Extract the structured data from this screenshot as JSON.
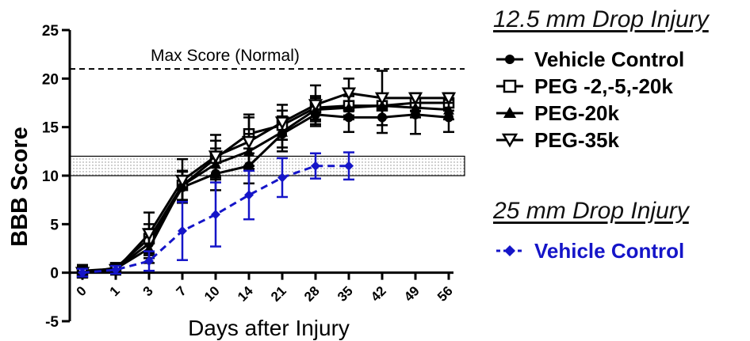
{
  "chart_data": {
    "type": "line",
    "ylabel": "BBB Score",
    "xlabel": "Days after Injury",
    "categories": [
      "0",
      "1",
      "3",
      "7",
      "10",
      "14",
      "21",
      "28",
      "35",
      "42",
      "49",
      "56"
    ],
    "ylim": [
      -5,
      25
    ],
    "yticks": [
      -5,
      0,
      5,
      10,
      15,
      20,
      25
    ],
    "ytick_labels": [
      "-5",
      "0",
      "5",
      "10",
      "15",
      "20",
      "25"
    ],
    "reference_line": {
      "y": 21,
      "label": "Max Score (Normal)"
    },
    "shaded_band": {
      "y_min": 10,
      "y_max": 12
    },
    "groups": [
      {
        "heading": "12.5 mm Drop Injury",
        "series": [
          {
            "name": "Vehicle Control",
            "marker": "circle",
            "color": "#000000",
            "dashed": false,
            "values": [
              0.2,
              0.4,
              3.0,
              8.8,
              10.2,
              11.0,
              14.3,
              16.3,
              16.0,
              16.0,
              16.3,
              16.0
            ],
            "errors": [
              0.6,
              0.5,
              1.5,
              1.6,
              1.7,
              1.8,
              1.8,
              1.2,
              1.5,
              1.6,
              2.0,
              1.5
            ]
          },
          {
            "name": "PEG -2,-5,-20k",
            "marker": "square",
            "color": "#000000",
            "dashed": false,
            "values": [
              0.0,
              0.5,
              3.5,
              9.0,
              11.8,
              14.3,
              15.2,
              17.0,
              17.2,
              17.2,
              17.5,
              17.5
            ],
            "errors": [
              0.5,
              0.5,
              1.5,
              1.5,
              1.8,
              2.0,
              1.5,
              1.2,
              1.0,
              1.2,
              0.8,
              0.8
            ]
          },
          {
            "name": "PEG-20k",
            "marker": "triangle-up",
            "color": "#000000",
            "dashed": false,
            "values": [
              0.1,
              0.4,
              2.5,
              9.0,
              11.2,
              12.5,
              14.5,
              16.8,
              17.0,
              17.2,
              17.0,
              16.8
            ],
            "errors": [
              0.6,
              0.5,
              1.5,
              1.5,
              1.6,
              1.8,
              1.6,
              1.2,
              1.2,
              1.2,
              1.0,
              1.0
            ]
          },
          {
            "name": "PEG-35k",
            "marker": "triangle-down",
            "color": "#000000",
            "dashed": false,
            "values": [
              0.0,
              0.3,
              4.0,
              9.5,
              12.0,
              13.5,
              15.5,
              17.3,
              18.5,
              18.0,
              18.0,
              18.0
            ],
            "errors": [
              0.5,
              0.5,
              2.2,
              2.2,
              2.2,
              2.5,
              1.8,
              2.0,
              1.5,
              2.8,
              0.5,
              0.5
            ]
          }
        ]
      },
      {
        "heading": "25 mm Drop Injury",
        "series": [
          {
            "name": "Vehicle Control",
            "marker": "diamond",
            "color": "#1515c8",
            "dashed": true,
            "values": [
              0.0,
              0.3,
              1.2,
              4.3,
              6.0,
              8.0,
              9.8,
              11.0,
              11.0
            ],
            "errors": [
              0.4,
              0.4,
              1.0,
              3.0,
              3.3,
              2.5,
              2.0,
              1.3,
              1.4
            ]
          }
        ]
      }
    ]
  }
}
